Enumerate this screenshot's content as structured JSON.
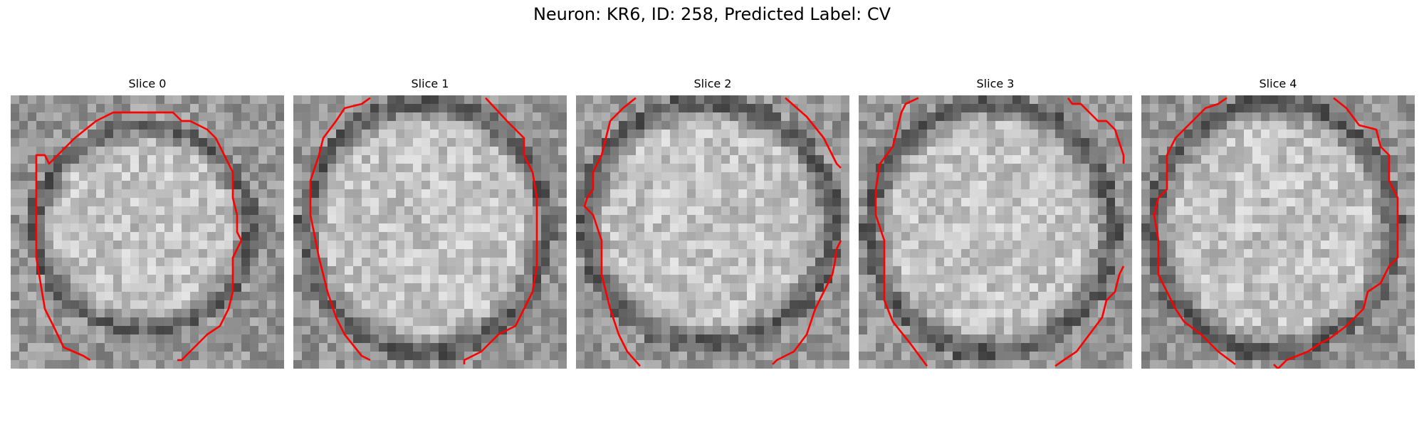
{
  "figure": {
    "title": "Neuron: KR6, ID: 258, Predicted Label: CV"
  },
  "colors": {
    "contour": "#ff0000",
    "background": "#ffffff"
  },
  "panels": [
    {
      "title": "Slice 0"
    },
    {
      "title": "Slice 1"
    },
    {
      "title": "Slice 2"
    },
    {
      "title": "Slice 3"
    },
    {
      "title": "Slice 4"
    }
  ]
}
